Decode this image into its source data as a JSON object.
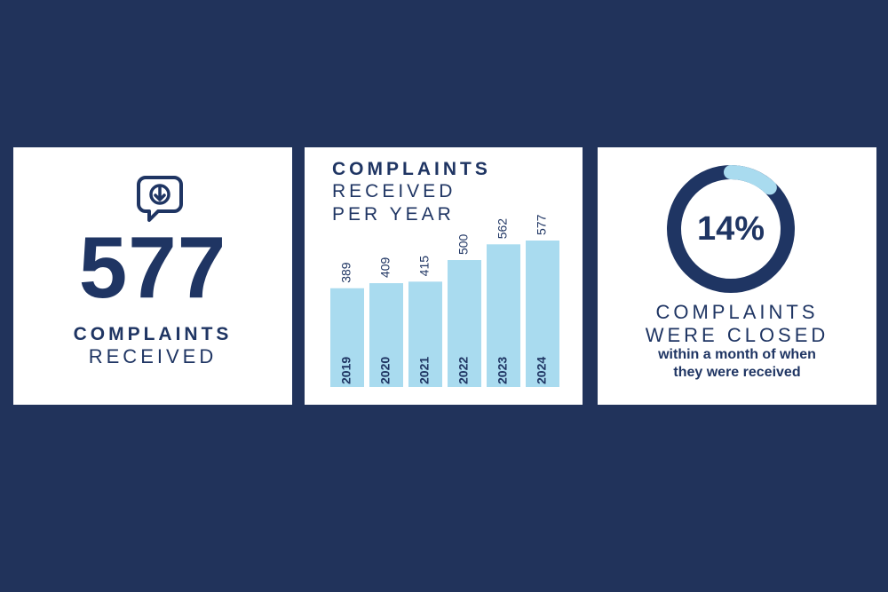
{
  "card1": {
    "icon": "speech-bubble-download-icon",
    "number": "577",
    "line1": "COMPLAINTS",
    "line2": "RECEIVED"
  },
  "card2": {
    "title_line1": "COMPLAINTS",
    "title_line2": "RECEIVED",
    "title_line3": "PER YEAR"
  },
  "card3": {
    "percent_label": "14%",
    "line1": "COMPLAINTS",
    "line2": "WERE CLOSED",
    "sub1": "within a month of when",
    "sub2": "they were received"
  },
  "colors": {
    "background": "#21335b",
    "navy": "#1f3563",
    "bar": "#a9dbef",
    "card": "#ffffff"
  },
  "chart_data": [
    {
      "type": "bar",
      "title": "COMPLAINTS RECEIVED PER YEAR",
      "categories": [
        "2019",
        "2020",
        "2021",
        "2022",
        "2023",
        "2024"
      ],
      "values": [
        389,
        409,
        415,
        500,
        562,
        577
      ],
      "xlabel": "",
      "ylabel": "",
      "grid": false
    },
    {
      "type": "pie",
      "subtype": "donut",
      "values": [
        14,
        86
      ],
      "labels": [
        "closed within a month",
        "other"
      ]
    }
  ]
}
